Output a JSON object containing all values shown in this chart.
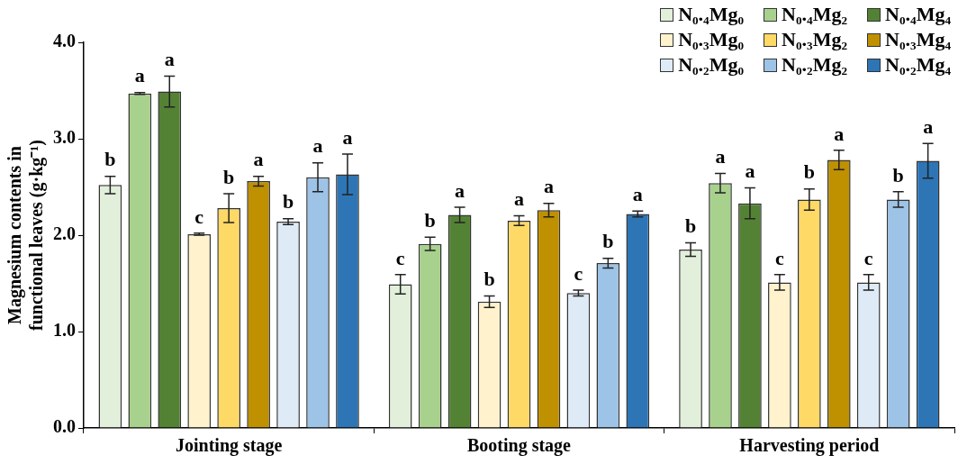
{
  "chart_data": {
    "type": "bar",
    "ylabel": "Magnesium contents in functional leaves (g·kg⁻¹)",
    "categories": [
      "Jointing stage",
      "Booting stage",
      "Harvesting period"
    ],
    "ylim": [
      0,
      4
    ],
    "yticks": [
      {
        "value": 0,
        "label": "0.0"
      },
      {
        "value": 1,
        "label": "1.0"
      },
      {
        "value": 2,
        "label": "2.0"
      },
      {
        "value": 3,
        "label": "3.0"
      },
      {
        "value": 4,
        "label": "4.0"
      }
    ],
    "grid": false,
    "legend": "top right",
    "series": [
      {
        "name": "N₀.₄Mg₀",
        "color": "#e2efda",
        "values": [
          2.52,
          1.49,
          1.85
        ],
        "errors": [
          0.09,
          0.1,
          0.07
        ],
        "value_labels": [
          "b",
          "c",
          "b"
        ]
      },
      {
        "name": "N₀.₄Mg₂",
        "color": "#a9d18e",
        "values": [
          3.47,
          1.91,
          2.54
        ],
        "errors": [
          0.01,
          0.07,
          0.1
        ],
        "value_labels": [
          "a",
          "b",
          "a"
        ]
      },
      {
        "name": "N₀.₄Mg₄",
        "color": "#548235",
        "values": [
          3.49,
          2.21,
          2.33
        ],
        "errors": [
          0.16,
          0.08,
          0.16
        ],
        "value_labels": [
          "a",
          "a",
          "a"
        ]
      },
      {
        "name": "N₀.₃Mg₀",
        "color": "#fff2cc",
        "values": [
          2.01,
          1.31,
          1.51
        ],
        "errors": [
          0.01,
          0.06,
          0.08
        ],
        "value_labels": [
          "c",
          "b",
          "c"
        ]
      },
      {
        "name": "N₀.₃Mg₂",
        "color": "#ffd966",
        "values": [
          2.28,
          2.15,
          2.37
        ],
        "errors": [
          0.15,
          0.05,
          0.11
        ],
        "value_labels": [
          "b",
          "a",
          "b"
        ]
      },
      {
        "name": "N₀.₃Mg₄",
        "color": "#bf9000",
        "values": [
          2.56,
          2.26,
          2.78
        ],
        "errors": [
          0.05,
          0.07,
          0.1
        ],
        "value_labels": [
          "a",
          "a",
          "a"
        ]
      },
      {
        "name": "N₀.₂Mg₀",
        "color": "#deebf7",
        "values": [
          2.14,
          1.4,
          1.51
        ],
        "errors": [
          0.03,
          0.03,
          0.08
        ],
        "value_labels": [
          "b",
          "c",
          "c"
        ]
      },
      {
        "name": "N₀.₂Mg₂",
        "color": "#9dc3e6",
        "values": [
          2.6,
          1.71,
          2.37
        ],
        "errors": [
          0.15,
          0.05,
          0.08
        ],
        "value_labels": [
          "a",
          "b",
          "b"
        ]
      },
      {
        "name": "N₀.₂Mg₄",
        "color": "#2e75b6",
        "values": [
          2.63,
          2.22,
          2.77
        ],
        "errors": [
          0.21,
          0.03,
          0.18
        ],
        "value_labels": [
          "a",
          "a",
          "a"
        ]
      }
    ]
  }
}
